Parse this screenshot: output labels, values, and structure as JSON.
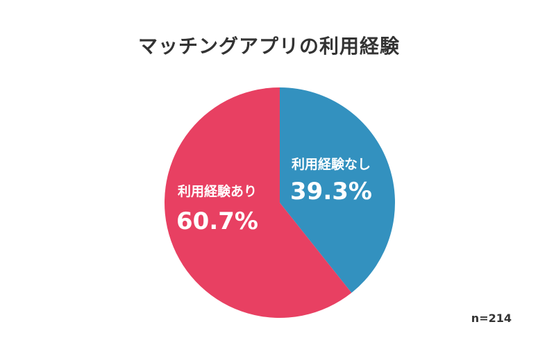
{
  "chart_data": {
    "type": "pie",
    "title": "マッチングアプリの利用経験",
    "slices": [
      {
        "label": "利用経験なし",
        "value": 39.3,
        "value_label": "39.3%",
        "color": "#3391bf"
      },
      {
        "label": "利用経験あり",
        "value": 60.7,
        "value_label": "60.7%",
        "color": "#e84062"
      }
    ],
    "start_angle": "12 o'clock",
    "direction": "clockwise",
    "note": "n=214"
  }
}
